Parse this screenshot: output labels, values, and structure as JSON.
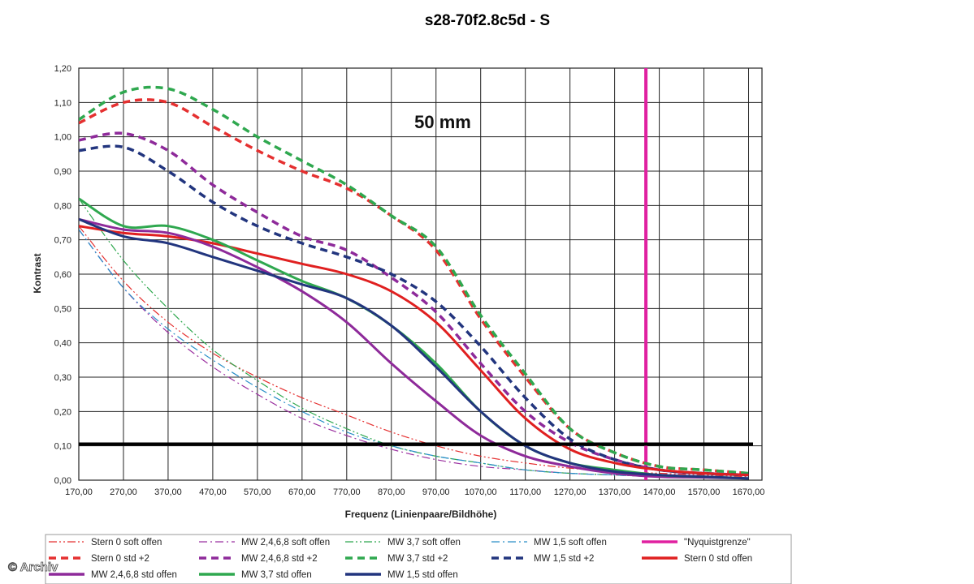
{
  "chart_data": {
    "type": "line",
    "title": "s28-70f2.8c5d - S",
    "annotation": "50 mm",
    "xlabel": "Frequenz (Linienpaare/Bildhöhe)",
    "ylabel": "Kontrast",
    "xlim": [
      170,
      1700
    ],
    "ylim": [
      0,
      1.2
    ],
    "x_ticks": [
      "170,00",
      "270,00",
      "370,00",
      "470,00",
      "570,00",
      "670,00",
      "770,00",
      "870,00",
      "970,00",
      "1070,00",
      "1170,00",
      "1270,00",
      "1370,00",
      "1470,00",
      "1570,00",
      "1670,00"
    ],
    "y_ticks": [
      "0,00",
      "0,10",
      "0,20",
      "0,30",
      "0,40",
      "0,50",
      "0,60",
      "0,70",
      "0,80",
      "0,90",
      "1,00",
      "1,10",
      "1,20"
    ],
    "grid": true,
    "legend_position": "bottom",
    "threshold_line": {
      "y": 0.105,
      "color": "#000000"
    },
    "series": [
      {
        "name": "Stern 0 soft offen",
        "color": "#e53030",
        "style": "dashdotdot",
        "width": 1.2,
        "x": [
          170,
          270,
          370,
          470,
          570,
          670,
          770,
          870,
          970,
          1070,
          1170,
          1270,
          1370,
          1470,
          1570,
          1670
        ],
        "y": [
          0.74,
          0.58,
          0.46,
          0.37,
          0.3,
          0.24,
          0.19,
          0.14,
          0.1,
          0.07,
          0.05,
          0.035,
          0.025,
          0.02,
          0.015,
          0.01
        ]
      },
      {
        "name": "MW 2,4,6,8 soft offen",
        "color": "#9b30a0",
        "style": "dashdot",
        "width": 1.2,
        "x": [
          170,
          270,
          370,
          470,
          570,
          670,
          770,
          870,
          970,
          1070,
          1170,
          1270,
          1370,
          1470,
          1570,
          1670
        ],
        "y": [
          0.73,
          0.56,
          0.43,
          0.33,
          0.25,
          0.18,
          0.13,
          0.09,
          0.06,
          0.04,
          0.03,
          0.02,
          0.015,
          0.01,
          0.008,
          0.005
        ]
      },
      {
        "name": "MW 3,7 soft offen",
        "color": "#2fa84f",
        "style": "dashdotdot",
        "width": 1.2,
        "x": [
          170,
          270,
          370,
          470,
          570,
          670,
          770,
          870,
          970,
          1070,
          1170,
          1270,
          1370,
          1470,
          1570,
          1670
        ],
        "y": [
          0.82,
          0.64,
          0.5,
          0.38,
          0.29,
          0.21,
          0.15,
          0.1,
          0.07,
          0.05,
          0.03,
          0.02,
          0.015,
          0.01,
          0.008,
          0.005
        ]
      },
      {
        "name": "MW 1,5 soft offen",
        "color": "#2a8fc8",
        "style": "dashdot",
        "width": 1.2,
        "x": [
          170,
          270,
          370,
          470,
          570,
          670,
          770,
          870,
          970,
          1070,
          1170,
          1270,
          1370,
          1470,
          1570,
          1670
        ],
        "y": [
          0.73,
          0.56,
          0.44,
          0.35,
          0.27,
          0.2,
          0.14,
          0.1,
          0.07,
          0.05,
          0.03,
          0.02,
          0.015,
          0.01,
          0.008,
          0.005
        ]
      },
      {
        "name": "\"Nyquistgrenze\"",
        "color": "#e020a0",
        "style": "solid",
        "width": 4,
        "x": [
          1440,
          1440
        ],
        "y": [
          0,
          1.2
        ]
      },
      {
        "name": "Stern 0 std +2",
        "color": "#e53030",
        "style": "dash",
        "width": 3.5,
        "x": [
          170,
          270,
          370,
          470,
          570,
          670,
          770,
          870,
          970,
          1070,
          1170,
          1270,
          1370,
          1470,
          1570,
          1670
        ],
        "y": [
          1.04,
          1.1,
          1.1,
          1.03,
          0.96,
          0.9,
          0.85,
          0.77,
          0.67,
          0.47,
          0.3,
          0.15,
          0.08,
          0.04,
          0.03,
          0.02
        ]
      },
      {
        "name": "MW 2,4,6,8 std +2",
        "color": "#8e2a9a",
        "style": "dash",
        "width": 3.5,
        "x": [
          170,
          270,
          370,
          470,
          570,
          670,
          770,
          870,
          970,
          1070,
          1170,
          1270,
          1370,
          1470,
          1570,
          1670
        ],
        "y": [
          0.99,
          1.01,
          0.96,
          0.86,
          0.78,
          0.71,
          0.67,
          0.59,
          0.49,
          0.34,
          0.2,
          0.11,
          0.06,
          0.03,
          0.02,
          0.015
        ]
      },
      {
        "name": "MW 3,7 std +2",
        "color": "#2fa84f",
        "style": "dash",
        "width": 3.5,
        "x": [
          170,
          270,
          370,
          470,
          570,
          670,
          770,
          870,
          970,
          1070,
          1170,
          1270,
          1370,
          1470,
          1570,
          1670
        ],
        "y": [
          1.05,
          1.13,
          1.14,
          1.08,
          1.0,
          0.93,
          0.86,
          0.77,
          0.68,
          0.48,
          0.31,
          0.15,
          0.08,
          0.04,
          0.03,
          0.02
        ]
      },
      {
        "name": "MW 1,5 std +2",
        "color": "#22357e",
        "style": "dash",
        "width": 3.5,
        "x": [
          170,
          270,
          370,
          470,
          570,
          670,
          770,
          870,
          970,
          1070,
          1170,
          1270,
          1370,
          1470,
          1570,
          1670
        ],
        "y": [
          0.96,
          0.97,
          0.9,
          0.81,
          0.74,
          0.69,
          0.65,
          0.6,
          0.52,
          0.39,
          0.24,
          0.12,
          0.06,
          0.03,
          0.02,
          0.015
        ]
      },
      {
        "name": "Stern 0 std offen",
        "color": "#e02020",
        "style": "solid",
        "width": 3,
        "x": [
          170,
          270,
          370,
          470,
          570,
          670,
          770,
          870,
          970,
          1070,
          1170,
          1270,
          1370,
          1470,
          1570,
          1670
        ],
        "y": [
          0.74,
          0.72,
          0.71,
          0.69,
          0.66,
          0.63,
          0.6,
          0.55,
          0.46,
          0.32,
          0.18,
          0.09,
          0.05,
          0.03,
          0.02,
          0.015
        ]
      },
      {
        "name": "MW 2,4,6,8 std offen",
        "color": "#8e2a9a",
        "style": "solid",
        "width": 3,
        "x": [
          170,
          270,
          370,
          470,
          570,
          670,
          770,
          870,
          970,
          1070,
          1170,
          1270,
          1370,
          1470,
          1570,
          1670
        ],
        "y": [
          0.76,
          0.73,
          0.72,
          0.68,
          0.62,
          0.55,
          0.46,
          0.34,
          0.23,
          0.13,
          0.07,
          0.04,
          0.02,
          0.01,
          0.008,
          0.005
        ]
      },
      {
        "name": "MW 3,7 std offen",
        "color": "#2fa84f",
        "style": "solid",
        "width": 3,
        "x": [
          170,
          270,
          370,
          470,
          570,
          670,
          770,
          870,
          970,
          1070,
          1170,
          1270,
          1370,
          1470,
          1570,
          1670
        ],
        "y": [
          0.82,
          0.74,
          0.74,
          0.7,
          0.64,
          0.58,
          0.53,
          0.45,
          0.34,
          0.2,
          0.1,
          0.05,
          0.03,
          0.015,
          0.01,
          0.005
        ]
      },
      {
        "name": "MW 1,5 std offen",
        "color": "#22357e",
        "style": "solid",
        "width": 3,
        "x": [
          170,
          270,
          370,
          470,
          570,
          670,
          770,
          870,
          970,
          1070,
          1170,
          1270,
          1370,
          1470,
          1570,
          1670
        ],
        "y": [
          0.76,
          0.71,
          0.69,
          0.65,
          0.61,
          0.57,
          0.53,
          0.45,
          0.33,
          0.2,
          0.1,
          0.05,
          0.025,
          0.015,
          0.01,
          0.005
        ]
      }
    ]
  },
  "watermark": "© Archiv"
}
